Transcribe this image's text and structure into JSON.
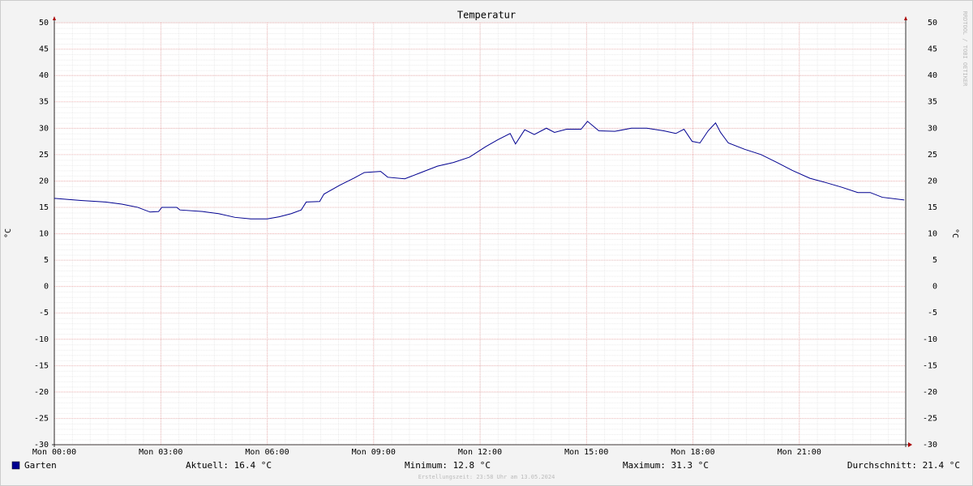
{
  "chart_data": {
    "type": "line",
    "title": "Temperatur",
    "y_label": "°C",
    "y2_label": "°C",
    "watermark": "RRDTOOL / TOBI OETIKER",
    "x": [
      0,
      0.75,
      1.44,
      1.9,
      2.35,
      2.7,
      2.94,
      3.03,
      3.45,
      3.54,
      4.18,
      4.63,
      5.09,
      5.54,
      6.0,
      6.34,
      6.68,
      6.96,
      7.1,
      7.48,
      7.6,
      8.05,
      8.44,
      8.74,
      9.2,
      9.4,
      9.88,
      10.3,
      10.8,
      11.25,
      11.7,
      12.16,
      12.5,
      12.85,
      13.0,
      13.26,
      13.53,
      13.87,
      14.1,
      14.44,
      14.85,
      15.03,
      15.35,
      15.8,
      16.27,
      16.7,
      17.18,
      17.52,
      17.75,
      17.98,
      18.2,
      18.43,
      18.64,
      18.78,
      19.0,
      19.46,
      19.92,
      20.37,
      20.8,
      21.3,
      21.74,
      22.2,
      22.65,
      23.0,
      23.34,
      23.96
    ],
    "series": [
      {
        "name": "Garten",
        "color": "#000090",
        "values": [
          16.7,
          16.3,
          16.0,
          15.6,
          15.0,
          14.1,
          14.2,
          15.0,
          15.0,
          14.5,
          14.2,
          13.8,
          13.1,
          12.8,
          12.8,
          13.2,
          13.8,
          14.5,
          16.0,
          16.1,
          17.5,
          19.2,
          20.5,
          21.6,
          21.8,
          20.7,
          20.4,
          21.5,
          22.8,
          23.5,
          24.5,
          26.5,
          27.8,
          29.0,
          27.0,
          29.7,
          28.8,
          30.0,
          29.2,
          29.8,
          29.8,
          31.3,
          29.5,
          29.4,
          30.0,
          30.0,
          29.5,
          29.0,
          29.8,
          27.5,
          27.2,
          29.5,
          31.0,
          29.2,
          27.2,
          26.0,
          25.0,
          23.5,
          22.0,
          20.5,
          19.7,
          18.8,
          17.8,
          17.8,
          16.9,
          16.4
        ]
      }
    ],
    "xlim": [
      0,
      24
    ],
    "xticks": [
      {
        "value": 0,
        "label": "Mon 00:00"
      },
      {
        "value": 3,
        "label": "Mon 03:00"
      },
      {
        "value": 6,
        "label": "Mon 06:00"
      },
      {
        "value": 9,
        "label": "Mon 09:00"
      },
      {
        "value": 12,
        "label": "Mon 12:00"
      },
      {
        "value": 15,
        "label": "Mon 15:00"
      },
      {
        "value": 18,
        "label": "Mon 18:00"
      },
      {
        "value": 21,
        "label": "Mon 21:00"
      }
    ],
    "ylim": [
      -30,
      50
    ],
    "yticks": [
      50,
      45,
      40,
      35,
      30,
      25,
      20,
      15,
      10,
      5,
      0,
      -5,
      -10,
      -15,
      -20,
      -25,
      -30
    ],
    "grid": true,
    "stats": [
      "Aktuell: 16.4 °C",
      "Minimum: 12.8 °C",
      "Maximum: 31.3 °C",
      "Durchschnitt: 21.4 °C"
    ],
    "footer": "Erstellungszeit: 23:58 Uhr am 13.05.2024"
  }
}
